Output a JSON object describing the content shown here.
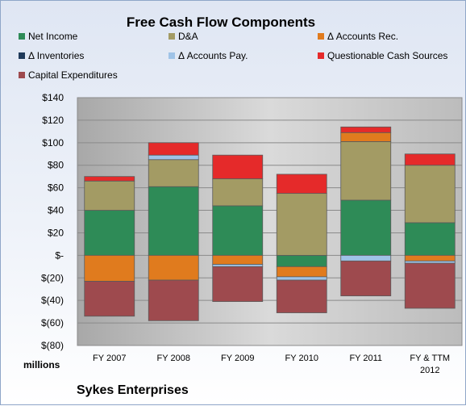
{
  "chart_data": {
    "type": "bar",
    "stacked": true,
    "title": "Free Cash Flow Components",
    "units_label": "millions",
    "company": "Sykes Enterprises",
    "categories": [
      "FY 2007",
      "FY 2008",
      "FY 2009",
      "FY 2010",
      "FY 2011",
      "FY & TTM 2012"
    ],
    "ylim": [
      -80,
      140
    ],
    "yticks": [
      -80,
      -60,
      -40,
      -20,
      0,
      20,
      40,
      60,
      80,
      100,
      120,
      140
    ],
    "ytick_labels": [
      "$(80)",
      "$(60)",
      "$(40)",
      "$(20)",
      "$-",
      "$20",
      "$40",
      "$60",
      "$80",
      "$100",
      "$120",
      "$140"
    ],
    "legend_placement": "top",
    "grid": true,
    "series": [
      {
        "name": "Net Income",
        "color": "#2e8b57",
        "values": [
          40,
          61,
          44,
          -10,
          49,
          29
        ]
      },
      {
        "name": "D&A",
        "color": "#a39b64",
        "values": [
          26,
          24,
          24,
          55,
          52,
          51
        ]
      },
      {
        "name": "Δ Accounts Rec.",
        "color": "#e07b1e",
        "values": [
          -23,
          -22,
          -8,
          -9,
          8,
          -5
        ]
      },
      {
        "name": "Δ Inventories",
        "color": "#1f3a5a",
        "values": [
          0,
          0,
          0,
          0,
          0,
          0
        ]
      },
      {
        "name": "Δ Accounts Pay.",
        "color": "#9fc3e7",
        "values": [
          0,
          4,
          -2,
          -3,
          -5,
          -2
        ]
      },
      {
        "name": "Questionable Cash Sources",
        "color": "#e52a2a",
        "values": [
          4,
          11,
          21,
          17,
          5,
          10
        ]
      },
      {
        "name": "Capital Expenditures",
        "color": "#9e4a4e",
        "values": [
          -31,
          -36,
          -31,
          -29,
          -31,
          -40
        ]
      }
    ]
  }
}
